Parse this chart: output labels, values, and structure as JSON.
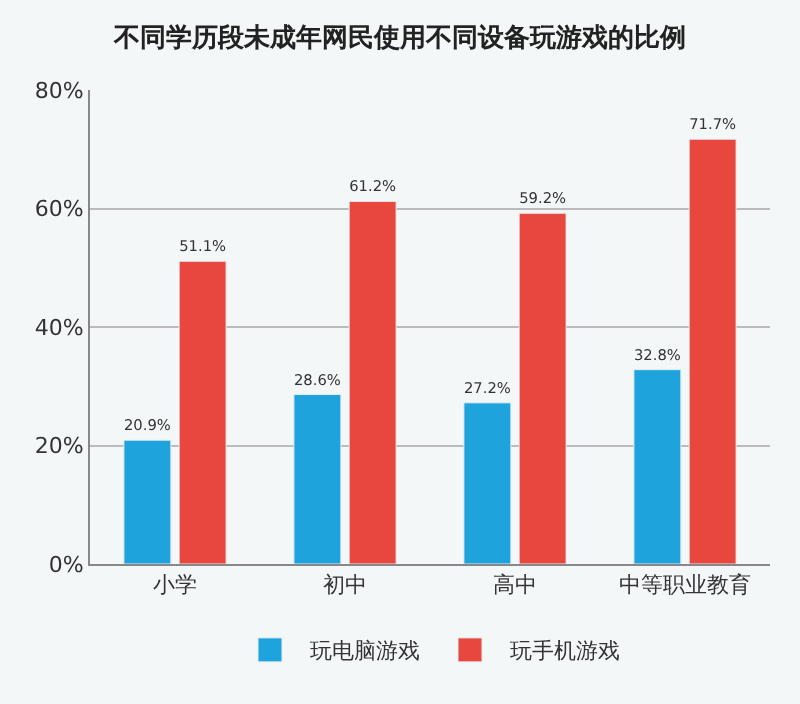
{
  "chart_data": {
    "type": "bar",
    "title": "不同学历段未成年网民使用不同设备玩游戏的比例",
    "categories": [
      "小学",
      "初中",
      "高中",
      "中等职业教育"
    ],
    "series": [
      {
        "name": "玩电脑游戏",
        "color": "#1ea3dd",
        "values": [
          20.9,
          28.6,
          27.2,
          32.8
        ],
        "value_labels": [
          "20.9%",
          "28.6%",
          "27.2%",
          "32.8%"
        ]
      },
      {
        "name": "玩手机游戏",
        "color": "#e8473d",
        "values": [
          51.1,
          61.2,
          59.2,
          71.7
        ],
        "value_labels": [
          "51.1%",
          "61.2%",
          "59.2%",
          "71.7%"
        ]
      }
    ],
    "ylim": [
      0,
      80
    ],
    "yticks": [
      {
        "value": 0,
        "label": "0%"
      },
      {
        "value": 20,
        "label": "20%"
      },
      {
        "value": 40,
        "label": "40%"
      },
      {
        "value": 60,
        "label": "60%"
      },
      {
        "value": 80,
        "label": "80%"
      }
    ],
    "grid": "y",
    "legend": "bottom"
  }
}
